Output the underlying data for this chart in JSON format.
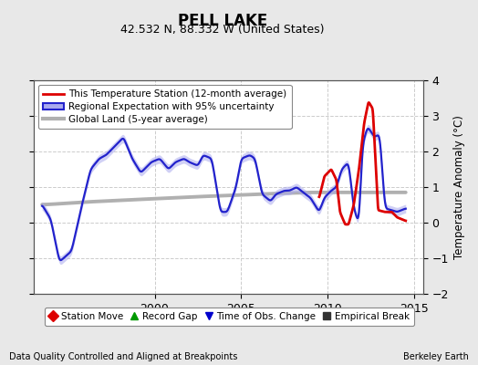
{
  "title": "PELL LAKE",
  "subtitle": "42.532 N, 88.332 W (United States)",
  "ylabel": "Temperature Anomaly (°C)",
  "xlabel_left": "Data Quality Controlled and Aligned at Breakpoints",
  "xlabel_right": "Berkeley Earth",
  "ylim": [
    -2,
    4
  ],
  "xlim": [
    1993.0,
    2015.5
  ],
  "yticks": [
    -2,
    -1,
    0,
    1,
    2,
    3,
    4
  ],
  "xticks": [
    2000,
    2005,
    2010,
    2015
  ],
  "bg_color": "#e8e8e8",
  "plot_bg_color": "#ffffff",
  "grid_color": "#cccccc",
  "legend_items": [
    {
      "label": "This Temperature Station (12-month average)",
      "color": "#dd0000",
      "lw": 2
    },
    {
      "label": "Regional Expectation with 95% uncertainty",
      "color": "#3333cc",
      "lw": 2
    },
    {
      "label": "Global Land (5-year average)",
      "color": "#aaaaaa",
      "lw": 3
    }
  ],
  "marker_legend": [
    {
      "label": "Station Move",
      "color": "#dd0000",
      "marker": "D"
    },
    {
      "label": "Record Gap",
      "color": "#009900",
      "marker": "^"
    },
    {
      "label": "Time of Obs. Change",
      "color": "#0000cc",
      "marker": "v"
    },
    {
      "label": "Empirical Break",
      "color": "#333333",
      "marker": "s"
    }
  ]
}
